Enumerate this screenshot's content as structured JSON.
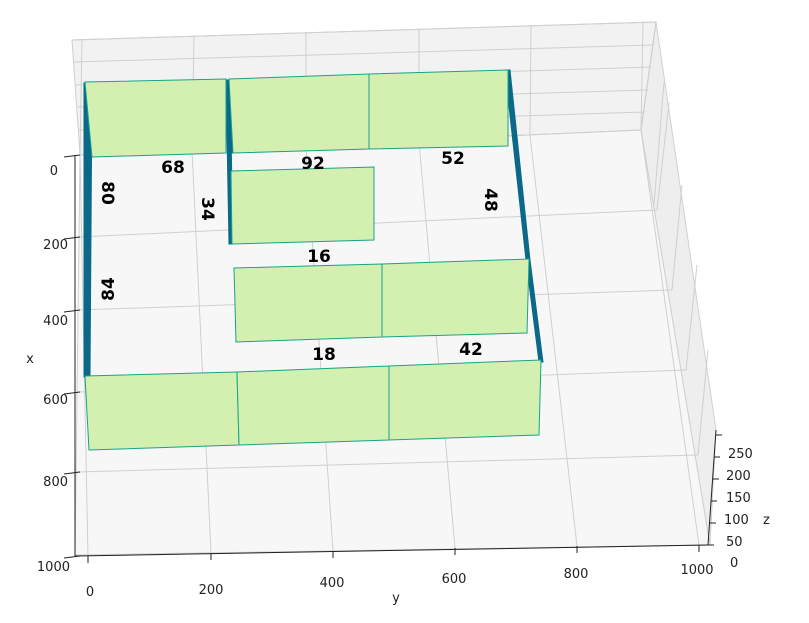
{
  "axes": {
    "x": {
      "title": "x",
      "ticks": [
        "0",
        "200",
        "400",
        "600",
        "800",
        "1000"
      ]
    },
    "y": {
      "title": "y",
      "ticks": [
        "0",
        "200",
        "400",
        "600",
        "800",
        "1000"
      ]
    },
    "z": {
      "title": "z",
      "ticks": [
        "0",
        "50",
        "100",
        "150",
        "200",
        "250"
      ]
    }
  },
  "colors": {
    "wall_face": "#d3f0b0",
    "wall_side": "#0b6889",
    "wall_edge": "#16a38a",
    "pane_back": "#f2f2f2",
    "pane_floor": "#f7f7f7",
    "grid": "#cfcfcf"
  },
  "wall_labels": [
    {
      "key": "top_left",
      "text": "68"
    },
    {
      "key": "top_mid",
      "text": "92"
    },
    {
      "key": "top_right",
      "text": "52"
    },
    {
      "key": "left_upper",
      "text": "80"
    },
    {
      "key": "inner_vertical",
      "text": "34"
    },
    {
      "key": "right_upper",
      "text": "48"
    },
    {
      "key": "middle",
      "text": "16"
    },
    {
      "key": "left_lower",
      "text": "84"
    },
    {
      "key": "bottom_mid",
      "text": "18"
    },
    {
      "key": "bottom_right",
      "text": "42"
    }
  ]
}
